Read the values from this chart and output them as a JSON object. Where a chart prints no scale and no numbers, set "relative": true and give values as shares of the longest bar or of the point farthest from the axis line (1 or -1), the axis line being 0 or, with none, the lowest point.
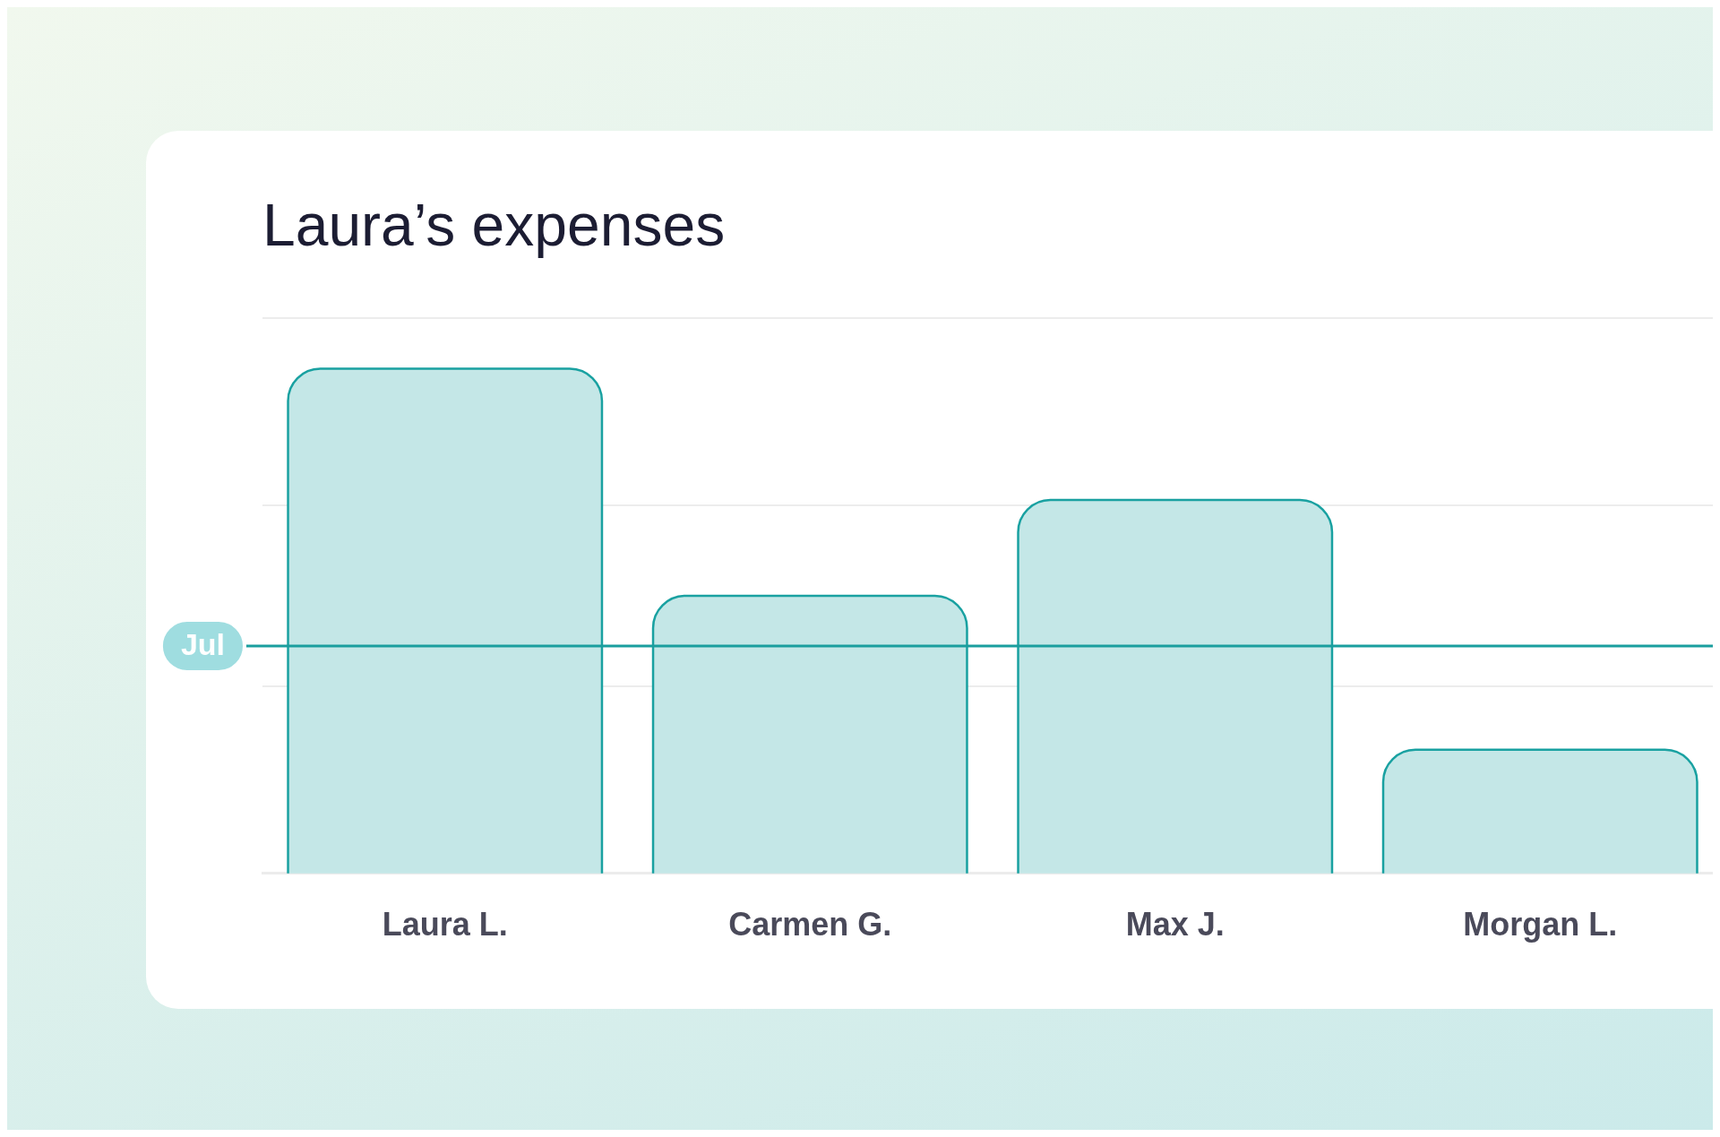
{
  "chart_data": {
    "type": "bar",
    "title": "Laura’s expenses",
    "categories": [
      "Laura L.",
      "Carmen G.",
      "Max J.",
      "Morgan L."
    ],
    "values": [
      1,
      0.55,
      0.74,
      0.245
    ],
    "color": "#c4e7e7",
    "relative": true,
    "ref_lines": [
      {
        "axis": "y",
        "value": 0.45,
        "label": "Jul",
        "color": "#1a9e9e"
      },
      {
        "axis": "y",
        "value": 0.37,
        "color": "#ececec"
      },
      {
        "axis": "y",
        "value": 0.73,
        "color": "#ececec"
      },
      {
        "axis": "y",
        "value": 1.1,
        "color": "#ececec"
      }
    ]
  }
}
